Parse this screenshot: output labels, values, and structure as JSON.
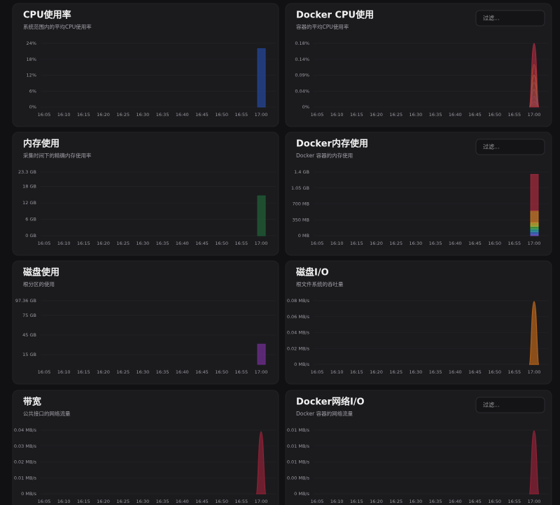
{
  "chart_data": [
    {
      "type": "bar",
      "title": "CPU使用率",
      "subtitle": "系统范围内的平均CPU使用率",
      "categories": [
        "16:05",
        "16:10",
        "16:15",
        "16:20",
        "16:25",
        "16:30",
        "16:35",
        "16:40",
        "16:45",
        "16:50",
        "16:55",
        "17:00"
      ],
      "values": [
        null,
        null,
        null,
        null,
        null,
        null,
        null,
        null,
        null,
        null,
        null,
        22
      ],
      "color": "#24448f",
      "ylim": [
        0,
        24
      ],
      "yticks": [
        {
          "value": 0,
          "label": "0%"
        },
        {
          "value": 6,
          "label": "6%"
        },
        {
          "value": 12,
          "label": "12%"
        },
        {
          "value": 18,
          "label": "18%"
        },
        {
          "value": 24,
          "label": "24%"
        }
      ],
      "grid": true
    },
    {
      "type": "stacked-area",
      "title": "Docker CPU使用",
      "subtitle": "容器的平均CPU使用率",
      "filter_placeholder": "过滤...",
      "categories": [
        "16:05",
        "16:10",
        "16:15",
        "16:20",
        "16:25",
        "16:30",
        "16:35",
        "16:40",
        "16:45",
        "16:50",
        "16:55",
        "17:00"
      ],
      "series": [
        {
          "color": "#7a52c8",
          "values": [
            null,
            null,
            null,
            null,
            null,
            null,
            null,
            null,
            null,
            null,
            null,
            0.015
          ]
        },
        {
          "color": "#3f6fd0",
          "values": [
            null,
            null,
            null,
            null,
            null,
            null,
            null,
            null,
            null,
            null,
            null,
            0.015
          ]
        },
        {
          "color": "#2fa6a0",
          "values": [
            null,
            null,
            null,
            null,
            null,
            null,
            null,
            null,
            null,
            null,
            null,
            0.02
          ]
        },
        {
          "color": "#4fae4a",
          "values": [
            null,
            null,
            null,
            null,
            null,
            null,
            null,
            null,
            null,
            null,
            null,
            0.02
          ]
        },
        {
          "color": "#c9b734",
          "values": [
            null,
            null,
            null,
            null,
            null,
            null,
            null,
            null,
            null,
            null,
            null,
            0.02
          ]
        },
        {
          "color": "#d07a2a",
          "values": [
            null,
            null,
            null,
            null,
            null,
            null,
            null,
            null,
            null,
            null,
            null,
            0.03
          ]
        },
        {
          "color": "#a32a3c",
          "values": [
            null,
            null,
            null,
            null,
            null,
            null,
            null,
            null,
            null,
            null,
            null,
            0.06
          ]
        }
      ],
      "ylim": [
        0,
        0.18
      ],
      "yticks": [
        {
          "value": 0,
          "label": "0%"
        },
        {
          "value": 0.045,
          "label": "0.04%"
        },
        {
          "value": 0.09,
          "label": "0.09%"
        },
        {
          "value": 0.135,
          "label": "0.14%"
        },
        {
          "value": 0.18,
          "label": "0.18%"
        }
      ],
      "grid": true
    },
    {
      "type": "bar",
      "title": "内存使用",
      "subtitle": "采集时间下的精确内存使用率",
      "categories": [
        "16:05",
        "16:10",
        "16:15",
        "16:20",
        "16:25",
        "16:30",
        "16:35",
        "16:40",
        "16:45",
        "16:50",
        "16:55",
        "17:00"
      ],
      "values": [
        null,
        null,
        null,
        null,
        null,
        null,
        null,
        null,
        null,
        null,
        null,
        14.6
      ],
      "color": "#1f5a34",
      "ylim": [
        0,
        23.3
      ],
      "yticks": [
        {
          "value": 0,
          "label": "0 GB"
        },
        {
          "value": 6,
          "label": "6 GB"
        },
        {
          "value": 12,
          "label": "12 GB"
        },
        {
          "value": 18,
          "label": "18 GB"
        },
        {
          "value": 23.3,
          "label": "23.3 GB"
        }
      ],
      "grid": true
    },
    {
      "type": "stacked-bar",
      "title": "Docker内存使用",
      "subtitle": "Docker 容器的内存使用",
      "filter_placeholder": "过滤...",
      "categories": [
        "16:05",
        "16:10",
        "16:15",
        "16:20",
        "16:25",
        "16:30",
        "16:35",
        "16:40",
        "16:45",
        "16:50",
        "16:55",
        "17:00"
      ],
      "series": [
        {
          "color": "#7a52c8",
          "values": [
            null,
            null,
            null,
            null,
            null,
            null,
            null,
            null,
            null,
            null,
            null,
            30
          ]
        },
        {
          "color": "#3f6fd0",
          "values": [
            null,
            null,
            null,
            null,
            null,
            null,
            null,
            null,
            null,
            null,
            null,
            60
          ]
        },
        {
          "color": "#2fa6a0",
          "values": [
            null,
            null,
            null,
            null,
            null,
            null,
            null,
            null,
            null,
            null,
            null,
            60
          ]
        },
        {
          "color": "#4fae4a",
          "values": [
            null,
            null,
            null,
            null,
            null,
            null,
            null,
            null,
            null,
            null,
            null,
            60
          ]
        },
        {
          "color": "#c9b734",
          "values": [
            null,
            null,
            null,
            null,
            null,
            null,
            null,
            null,
            null,
            null,
            null,
            80
          ]
        },
        {
          "color": "#d07a2a",
          "values": [
            null,
            null,
            null,
            null,
            null,
            null,
            null,
            null,
            null,
            null,
            null,
            260
          ]
        },
        {
          "color": "#a32a3c",
          "values": [
            null,
            null,
            null,
            null,
            null,
            null,
            null,
            null,
            null,
            null,
            null,
            800
          ]
        }
      ],
      "ylim": [
        0,
        1400
      ],
      "yticks": [
        {
          "value": 0,
          "label": "0 MB"
        },
        {
          "value": 350,
          "label": "350 MB"
        },
        {
          "value": 700,
          "label": "700 MB"
        },
        {
          "value": 1050,
          "label": "1.05 GB"
        },
        {
          "value": 1400,
          "label": "1.4 GB"
        }
      ],
      "grid": true
    },
    {
      "type": "bar",
      "title": "磁盘使用",
      "subtitle": "根分区的使用",
      "categories": [
        "16:05",
        "16:10",
        "16:15",
        "16:20",
        "16:25",
        "16:30",
        "16:35",
        "16:40",
        "16:45",
        "16:50",
        "16:55",
        "17:00"
      ],
      "values": [
        null,
        null,
        null,
        null,
        null,
        null,
        null,
        null,
        null,
        null,
        null,
        31
      ],
      "color": "#6a2d8a",
      "ylim": [
        0,
        97.36
      ],
      "yticks": [
        {
          "value": 15,
          "label": "15 GB"
        },
        {
          "value": 45,
          "label": "45 GB"
        },
        {
          "value": 75,
          "label": "75 GB"
        },
        {
          "value": 97.36,
          "label": "97.36 GB"
        }
      ],
      "grid": true
    },
    {
      "type": "area",
      "title": "磁盘I/O",
      "subtitle": "根文件系统的吞吐量",
      "categories": [
        "16:05",
        "16:10",
        "16:15",
        "16:20",
        "16:25",
        "16:30",
        "16:35",
        "16:40",
        "16:45",
        "16:50",
        "16:55",
        "17:00"
      ],
      "values": [
        null,
        null,
        null,
        null,
        null,
        null,
        null,
        null,
        null,
        null,
        null,
        0.079
      ],
      "color": "#b0601a",
      "ylim": [
        0,
        0.08
      ],
      "yticks": [
        {
          "value": 0,
          "label": "0 MB/s"
        },
        {
          "value": 0.02,
          "label": "0.02 MB/s"
        },
        {
          "value": 0.04,
          "label": "0.04 MB/s"
        },
        {
          "value": 0.06,
          "label": "0.06 MB/s"
        },
        {
          "value": 0.08,
          "label": "0.08 MB/s"
        }
      ],
      "grid": true
    },
    {
      "type": "area",
      "title": "带宽",
      "subtitle": "公共接口的网络流量",
      "categories": [
        "16:05",
        "16:10",
        "16:15",
        "16:20",
        "16:25",
        "16:30",
        "16:35",
        "16:40",
        "16:45",
        "16:50",
        "16:55",
        "17:00"
      ],
      "values": [
        null,
        null,
        null,
        null,
        null,
        null,
        null,
        null,
        null,
        null,
        null,
        0.039
      ],
      "color": "#8b2235",
      "ylim": [
        0,
        0.04
      ],
      "yticks": [
        {
          "value": 0,
          "label": "0 MB/s"
        },
        {
          "value": 0.01,
          "label": "0.01 MB/s"
        },
        {
          "value": 0.02,
          "label": "0.02 MB/s"
        },
        {
          "value": 0.03,
          "label": "0.03 MB/s"
        },
        {
          "value": 0.04,
          "label": "0.04 MB/s"
        }
      ],
      "grid": true
    },
    {
      "type": "area",
      "title": "Docker网络I/O",
      "subtitle": "Docker 容器的网络流量",
      "filter_placeholder": "过滤...",
      "categories": [
        "16:05",
        "16:10",
        "16:15",
        "16:20",
        "16:25",
        "16:30",
        "16:35",
        "16:40",
        "16:45",
        "16:50",
        "16:55",
        "17:00"
      ],
      "values": [
        null,
        null,
        null,
        null,
        null,
        null,
        null,
        null,
        null,
        null,
        null,
        0.0099
      ],
      "color": "#8b2235",
      "ylim": [
        0,
        0.01
      ],
      "yticks": [
        {
          "value": 0,
          "label": "0 MB/s"
        },
        {
          "value": 0.0025,
          "label": "0.00 MB/s"
        },
        {
          "value": 0.005,
          "label": "0.01 MB/s"
        },
        {
          "value": 0.0075,
          "label": "0.01 MB/s"
        },
        {
          "value": 0.01,
          "label": "0.01 MB/s"
        }
      ],
      "grid": true
    }
  ]
}
